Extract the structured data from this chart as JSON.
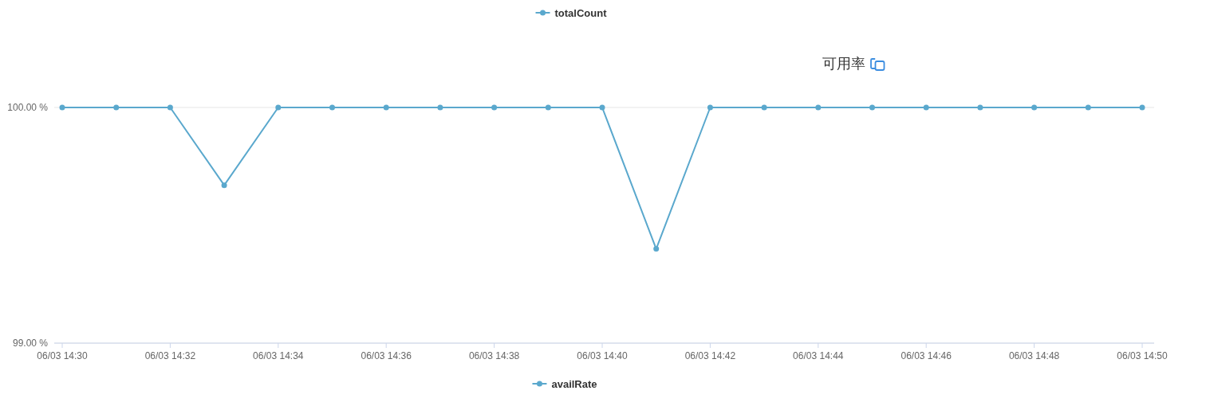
{
  "chart_data": [
    {
      "type": "other",
      "annotations": [
        "totalCount"
      ]
    },
    {
      "type": "line",
      "title": "可用率",
      "categories": [
        "06/03 14:30",
        null,
        "06/03 14:32",
        null,
        "06/03 14:34",
        null,
        "06/03 14:36",
        null,
        "06/03 14:38",
        null,
        "06/03 14:40",
        null,
        "06/03 14:42",
        null,
        "06/03 14:44",
        null,
        "06/03 14:46",
        null,
        "06/03 14:48",
        null,
        "06/03 14:50"
      ],
      "series": [
        {
          "name": "availRate",
          "color": "#5aa8cd",
          "values": [
            100,
            100,
            100,
            99.67,
            100,
            100,
            100,
            100,
            100,
            100,
            100,
            99.4,
            100,
            100,
            100,
            100,
            100,
            100,
            100,
            100,
            100
          ]
        }
      ],
      "ylim": [
        99,
        100
      ],
      "yticks": [
        {
          "value": 99,
          "label": "99.00 %"
        },
        {
          "value": 100,
          "label": "100.00 %"
        }
      ],
      "grid": "y",
      "legend": "bottom",
      "marker": "circle",
      "line_style": "solid"
    }
  ]
}
